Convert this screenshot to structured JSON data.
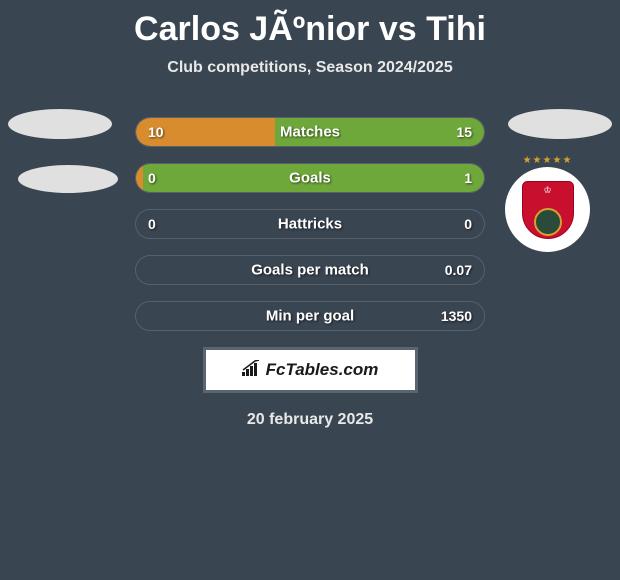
{
  "title": "Carlos JÃºnior vs Tihi",
  "subtitle": "Club competitions, Season 2024/2025",
  "date": "20 february 2025",
  "brand_text": "FcTables.com",
  "colors": {
    "left_fill": "#d98c2e",
    "right_fill": "#6fa83a",
    "background": "#3a4552",
    "brand_bg": "#ffffff",
    "brand_text": "#1a1a1a",
    "club_shield": "#c8102e"
  },
  "stats": [
    {
      "label": "Matches",
      "left_value": "10",
      "right_value": "15",
      "left_pct": 40,
      "right_pct": 60
    },
    {
      "label": "Goals",
      "left_value": "0",
      "right_value": "1",
      "left_pct": 2,
      "right_pct": 98
    },
    {
      "label": "Hattricks",
      "left_value": "0",
      "right_value": "0",
      "left_pct": 0,
      "right_pct": 0
    },
    {
      "label": "Goals per match",
      "left_value": "",
      "right_value": "0.07",
      "left_pct": 0,
      "right_pct": 0
    },
    {
      "label": "Min per goal",
      "left_value": "",
      "right_value": "1350",
      "left_pct": 0,
      "right_pct": 0
    }
  ]
}
